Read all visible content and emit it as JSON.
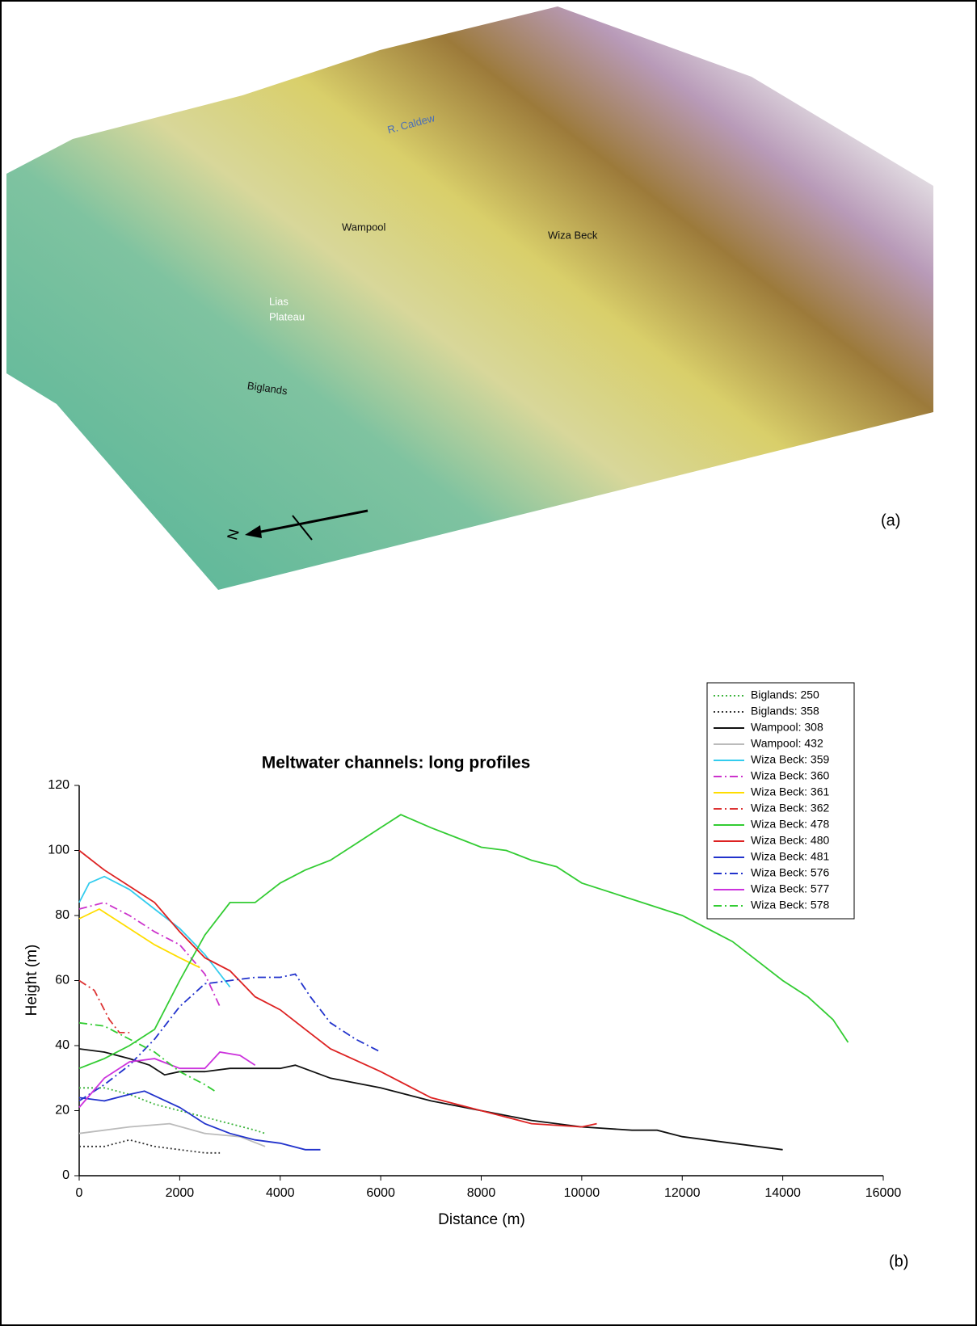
{
  "map": {
    "labels": {
      "caldew": "R. Caldew",
      "wampool": "Wampool",
      "wiza": "Wiza Beck",
      "lias": [
        "Lias",
        "Plateau"
      ],
      "biglands": "Biglands",
      "north": "N"
    },
    "panel": "(a)"
  },
  "chart_data": {
    "type": "line",
    "title": "Meltwater channels: long profiles",
    "xlabel": "Distance (m)",
    "ylabel": "Height (m)",
    "panel": "(b)",
    "xlim": [
      0,
      16000
    ],
    "xticks": [
      0,
      2000,
      4000,
      6000,
      8000,
      10000,
      12000,
      14000,
      16000
    ],
    "ylim": [
      0,
      120
    ],
    "yticks": [
      0,
      20,
      40,
      60,
      80,
      100,
      120
    ],
    "grid": false,
    "legend": "upper right",
    "series": [
      {
        "name": "Biglands: 250",
        "color": "#3cb43c",
        "style": "dotted",
        "x": [
          0,
          500,
          1000,
          1500,
          2000,
          2500,
          3000,
          3500,
          3700
        ],
        "values": [
          27,
          27,
          25,
          22,
          20,
          18,
          16,
          14,
          13
        ]
      },
      {
        "name": "Biglands: 358",
        "color": "#333333",
        "style": "dotted",
        "x": [
          0,
          500,
          1000,
          1500,
          2000,
          2500,
          2800
        ],
        "values": [
          9,
          9,
          11,
          9,
          8,
          7,
          7
        ]
      },
      {
        "name": "Wampool: 308",
        "color": "#111111",
        "style": "solid",
        "x": [
          0,
          500,
          1000,
          1400,
          1700,
          2000,
          2500,
          3000,
          3500,
          4000,
          4300,
          5000,
          6000,
          7000,
          8000,
          9000,
          10000,
          11000,
          11500,
          12000,
          13000,
          14000
        ],
        "values": [
          39,
          38,
          36,
          34,
          31,
          32,
          32,
          33,
          33,
          33,
          34,
          30,
          27,
          23,
          20,
          17,
          15,
          14,
          14,
          12,
          10,
          8
        ]
      },
      {
        "name": "Wampool: 432",
        "color": "#bbbbbb",
        "style": "solid",
        "x": [
          0,
          1000,
          1800,
          2500,
          3200,
          3700
        ],
        "values": [
          13,
          15,
          16,
          13,
          12,
          9
        ]
      },
      {
        "name": "Wiza Beck: 359",
        "color": "#33ccee",
        "style": "solid",
        "x": [
          0,
          200,
          500,
          1000,
          1500,
          2000,
          2500,
          3000
        ],
        "values": [
          84,
          90,
          92,
          88,
          82,
          76,
          68,
          58
        ]
      },
      {
        "name": "Wiza Beck: 360",
        "color": "#cc33cc",
        "style": "dashdot",
        "x": [
          0,
          500,
          1000,
          1500,
          2000,
          2500,
          2800
        ],
        "values": [
          82,
          84,
          80,
          75,
          71,
          62,
          52
        ]
      },
      {
        "name": "Wiza Beck: 361",
        "color": "#ffdd00",
        "style": "solid",
        "x": [
          0,
          400,
          1000,
          1500,
          2000,
          2400
        ],
        "values": [
          79,
          82,
          76,
          71,
          67,
          64
        ]
      },
      {
        "name": "Wiza Beck: 362",
        "color": "#dd3333",
        "style": "dashdot",
        "x": [
          0,
          300,
          600,
          800,
          1000
        ],
        "values": [
          60,
          57,
          48,
          44,
          44
        ]
      },
      {
        "name": "Wiza Beck: 478",
        "color": "#33cc33",
        "style": "solid",
        "x": [
          0,
          500,
          1000,
          1500,
          2000,
          2500,
          3000,
          3500,
          4000,
          4500,
          5000,
          5500,
          6000,
          6400,
          7000,
          7500,
          8000,
          8500,
          9000,
          9500,
          10000,
          11000,
          12000,
          13000,
          14000,
          14500,
          15000,
          15300
        ],
        "values": [
          33,
          36,
          40,
          45,
          60,
          74,
          84,
          84,
          90,
          94,
          97,
          102,
          107,
          111,
          107,
          104,
          101,
          100,
          97,
          95,
          90,
          85,
          80,
          72,
          60,
          55,
          48,
          41
        ]
      },
      {
        "name": "Wiza Beck: 480",
        "color": "#dd2222",
        "style": "solid",
        "x": [
          0,
          500,
          1000,
          1500,
          2000,
          2500,
          3000,
          3500,
          4000,
          4500,
          5000,
          6000,
          7000,
          8000,
          9000,
          10000,
          10300
        ],
        "values": [
          100,
          94,
          89,
          84,
          75,
          67,
          63,
          55,
          51,
          45,
          39,
          32,
          24,
          20,
          16,
          15,
          16
        ]
      },
      {
        "name": "Wiza Beck: 481",
        "color": "#2233cc",
        "style": "solid",
        "x": [
          0,
          500,
          1000,
          1300,
          2000,
          2500,
          3000,
          3500,
          4000,
          4500,
          4800
        ],
        "values": [
          24,
          23,
          25,
          26,
          21,
          16,
          13,
          11,
          10,
          8,
          8
        ]
      },
      {
        "name": "Wiza Beck: 576",
        "color": "#2233cc",
        "style": "dashdot",
        "x": [
          0,
          500,
          1000,
          1500,
          2000,
          2500,
          3000,
          3500,
          4000,
          4300,
          4600,
          5000,
          5500,
          6000
        ],
        "values": [
          23,
          28,
          34,
          42,
          52,
          59,
          60,
          61,
          61,
          62,
          55,
          47,
          42,
          38
        ]
      },
      {
        "name": "Wiza Beck: 577",
        "color": "#cc33dd",
        "style": "solid",
        "x": [
          0,
          500,
          1000,
          1500,
          2000,
          2500,
          2800,
          3200,
          3500
        ],
        "values": [
          21,
          30,
          35,
          36,
          33,
          33,
          38,
          37,
          34
        ]
      },
      {
        "name": "Wiza Beck: 578",
        "color": "#33cc33",
        "style": "dashdot",
        "x": [
          0,
          500,
          1000,
          1500,
          2000,
          2500,
          2700
        ],
        "values": [
          47,
          46,
          42,
          38,
          32,
          28,
          26
        ]
      }
    ]
  }
}
